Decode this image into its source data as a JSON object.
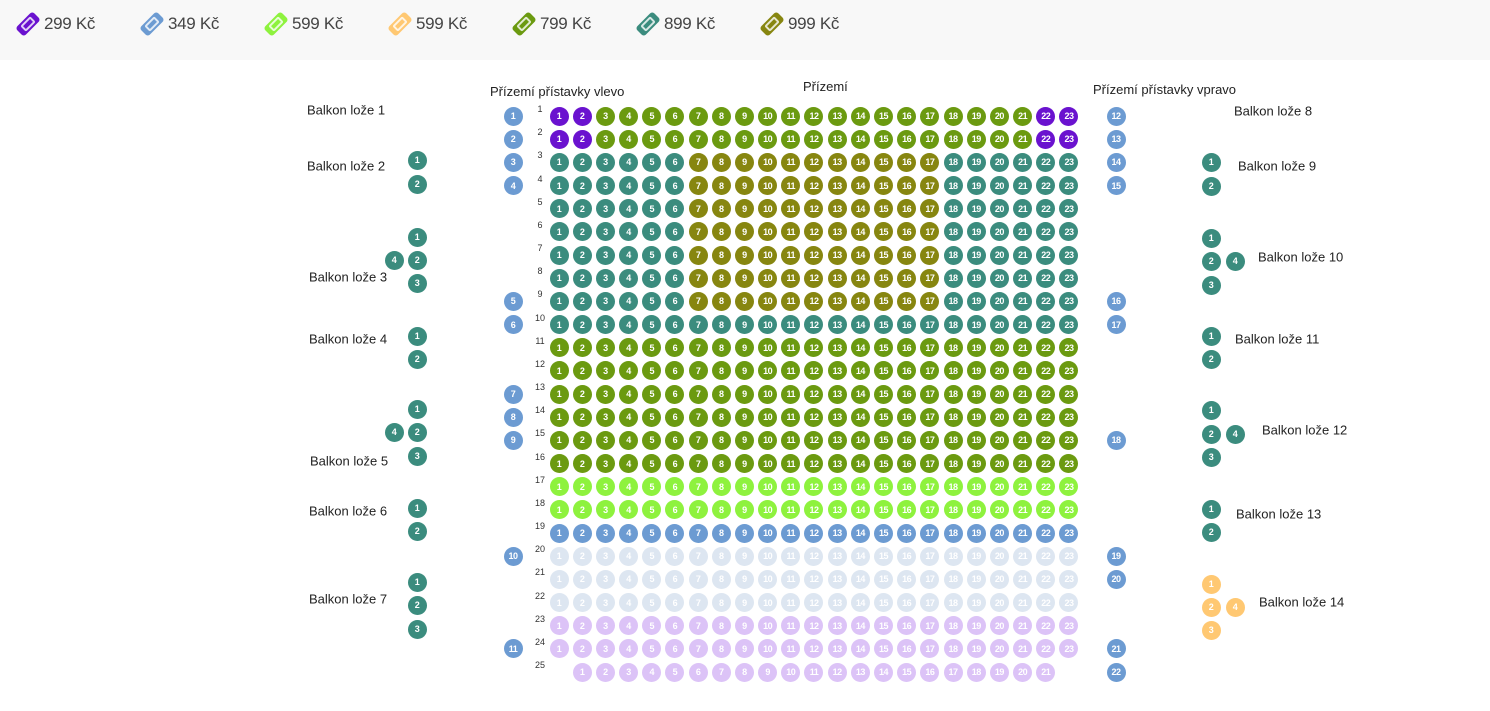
{
  "legend": [
    {
      "price": "299 Kč",
      "color": "#6a12cf"
    },
    {
      "price": "349 Kč",
      "color": "#6c9bd2"
    },
    {
      "price": "599 Kč",
      "color": "#8ef23e"
    },
    {
      "price": "599 Kč",
      "color": "#ffc872"
    },
    {
      "price": "799 Kč",
      "color": "#6b9a10"
    },
    {
      "price": "899 Kč",
      "color": "#3b8c7e"
    },
    {
      "price": "999 Kč",
      "color": "#878610"
    }
  ],
  "state_colors": {
    "faded_blue": "#dde6f1",
    "faded_purple": "#dcc3f7"
  },
  "sections": {
    "left": "Přízemí přístavky vlevo",
    "center": "Přízemí",
    "right": "Přízemí přístavky vpravo"
  },
  "rows": [
    {
      "row": "1",
      "segments": [
        [
          1,
          2,
          0
        ],
        [
          3,
          21,
          4
        ],
        [
          22,
          23,
          0
        ]
      ]
    },
    {
      "row": "2",
      "segments": [
        [
          1,
          2,
          0
        ],
        [
          3,
          21,
          4
        ],
        [
          22,
          23,
          0
        ]
      ]
    },
    {
      "row": "3",
      "segments": [
        [
          1,
          6,
          5
        ],
        [
          7,
          17,
          6
        ],
        [
          18,
          23,
          5
        ]
      ]
    },
    {
      "row": "4",
      "segments": [
        [
          1,
          6,
          5
        ],
        [
          7,
          17,
          6
        ],
        [
          18,
          23,
          5
        ]
      ]
    },
    {
      "row": "5",
      "segments": [
        [
          1,
          6,
          5
        ],
        [
          7,
          17,
          6
        ],
        [
          18,
          23,
          5
        ]
      ]
    },
    {
      "row": "6",
      "segments": [
        [
          1,
          6,
          5
        ],
        [
          7,
          17,
          6
        ],
        [
          18,
          23,
          5
        ]
      ]
    },
    {
      "row": "7",
      "segments": [
        [
          1,
          6,
          5
        ],
        [
          7,
          17,
          6
        ],
        [
          18,
          23,
          5
        ]
      ]
    },
    {
      "row": "8",
      "segments": [
        [
          1,
          6,
          5
        ],
        [
          7,
          17,
          6
        ],
        [
          18,
          23,
          5
        ]
      ]
    },
    {
      "row": "9",
      "segments": [
        [
          1,
          6,
          5
        ],
        [
          7,
          17,
          6
        ],
        [
          18,
          23,
          5
        ]
      ]
    },
    {
      "row": "10",
      "segments": [
        [
          1,
          23,
          5
        ]
      ]
    },
    {
      "row": "11",
      "segments": [
        [
          1,
          23,
          4
        ]
      ]
    },
    {
      "row": "12",
      "segments": [
        [
          1,
          23,
          4
        ]
      ]
    },
    {
      "row": "13",
      "segments": [
        [
          1,
          23,
          4
        ]
      ]
    },
    {
      "row": "14",
      "segments": [
        [
          1,
          23,
          4
        ]
      ]
    },
    {
      "row": "15",
      "segments": [
        [
          1,
          23,
          4
        ]
      ]
    },
    {
      "row": "16",
      "segments": [
        [
          1,
          23,
          4
        ]
      ]
    },
    {
      "row": "17",
      "segments": [
        [
          1,
          23,
          2
        ]
      ]
    },
    {
      "row": "18",
      "segments": [
        [
          1,
          23,
          2
        ]
      ]
    },
    {
      "row": "19",
      "segments": [
        [
          1,
          23,
          1
        ]
      ]
    },
    {
      "row": "20",
      "segments": [
        [
          1,
          23,
          "faded_blue"
        ]
      ]
    },
    {
      "row": "21",
      "segments": [
        [
          1,
          23,
          "faded_blue"
        ]
      ]
    },
    {
      "row": "22",
      "segments": [
        [
          1,
          23,
          "faded_blue"
        ]
      ]
    },
    {
      "row": "23",
      "segments": [
        [
          1,
          23,
          "faded_purple"
        ]
      ]
    },
    {
      "row": "24",
      "segments": [
        [
          1,
          23,
          "faded_purple"
        ]
      ]
    },
    {
      "row": "25",
      "gap_before": 1,
      "segments": [
        [
          1,
          21,
          "faded_purple"
        ]
      ]
    }
  ],
  "aisle_left": [
    {
      "seat": "1",
      "row": 1
    },
    {
      "seat": "2",
      "row": 2
    },
    {
      "seat": "3",
      "row": 3
    },
    {
      "seat": "4",
      "row": 4
    },
    {
      "seat": "5",
      "row": 9
    },
    {
      "seat": "6",
      "row": 10
    },
    {
      "seat": "7",
      "row": 13
    },
    {
      "seat": "8",
      "row": 14
    },
    {
      "seat": "9",
      "row": 15
    },
    {
      "seat": "10",
      "row": 20
    },
    {
      "seat": "11",
      "row": 24
    }
  ],
  "aisle_right": [
    {
      "seat": "12",
      "row": 1
    },
    {
      "seat": "13",
      "row": 2
    },
    {
      "seat": "14",
      "row": 3
    },
    {
      "seat": "15",
      "row": 4
    },
    {
      "seat": "16",
      "row": 9
    },
    {
      "seat": "17",
      "row": 10
    },
    {
      "seat": "18",
      "row": 15
    },
    {
      "seat": "19",
      "row": 20
    },
    {
      "seat": "20",
      "row": 21
    },
    {
      "seat": "21",
      "row": 24
    },
    {
      "seat": "22",
      "row": 25
    }
  ],
  "aisle_tier": 1,
  "loges": [
    {
      "label": "Balkon lože 1",
      "seats": [],
      "tier": 5
    },
    {
      "label": "Balkon lože 2",
      "seats": [
        "1",
        "2"
      ],
      "tier": 5
    },
    {
      "label": "Balkon lože 3",
      "seats": [
        "1",
        "2",
        "3",
        "4"
      ],
      "tier": 5
    },
    {
      "label": "Balkon lože 4",
      "seats": [
        "1",
        "2"
      ],
      "tier": 5
    },
    {
      "label": "Balkon lože 5",
      "seats": [
        "1",
        "2",
        "3",
        "4"
      ],
      "tier": 5
    },
    {
      "label": "Balkon lože 6",
      "seats": [
        "1",
        "2"
      ],
      "tier": 5
    },
    {
      "label": "Balkon lože 7",
      "seats": [
        "1",
        "2",
        "3"
      ],
      "tier": 5
    },
    {
      "label": "Balkon lože 8",
      "seats": [],
      "tier": 5
    },
    {
      "label": "Balkon lože 9",
      "seats": [
        "1",
        "2"
      ],
      "tier": 5
    },
    {
      "label": "Balkon lože 10",
      "seats": [
        "1",
        "2",
        "3",
        "4"
      ],
      "tier": 5
    },
    {
      "label": "Balkon lože 11",
      "seats": [
        "1",
        "2"
      ],
      "tier": 5
    },
    {
      "label": "Balkon lože 12",
      "seats": [
        "1",
        "2",
        "3",
        "4"
      ],
      "tier": 5
    },
    {
      "label": "Balkon lože 13",
      "seats": [
        "1",
        "2"
      ],
      "tier": 5
    },
    {
      "label": "Balkon lože 14",
      "seats": [
        "1",
        "2",
        "3",
        "4"
      ],
      "tier": 3
    }
  ]
}
